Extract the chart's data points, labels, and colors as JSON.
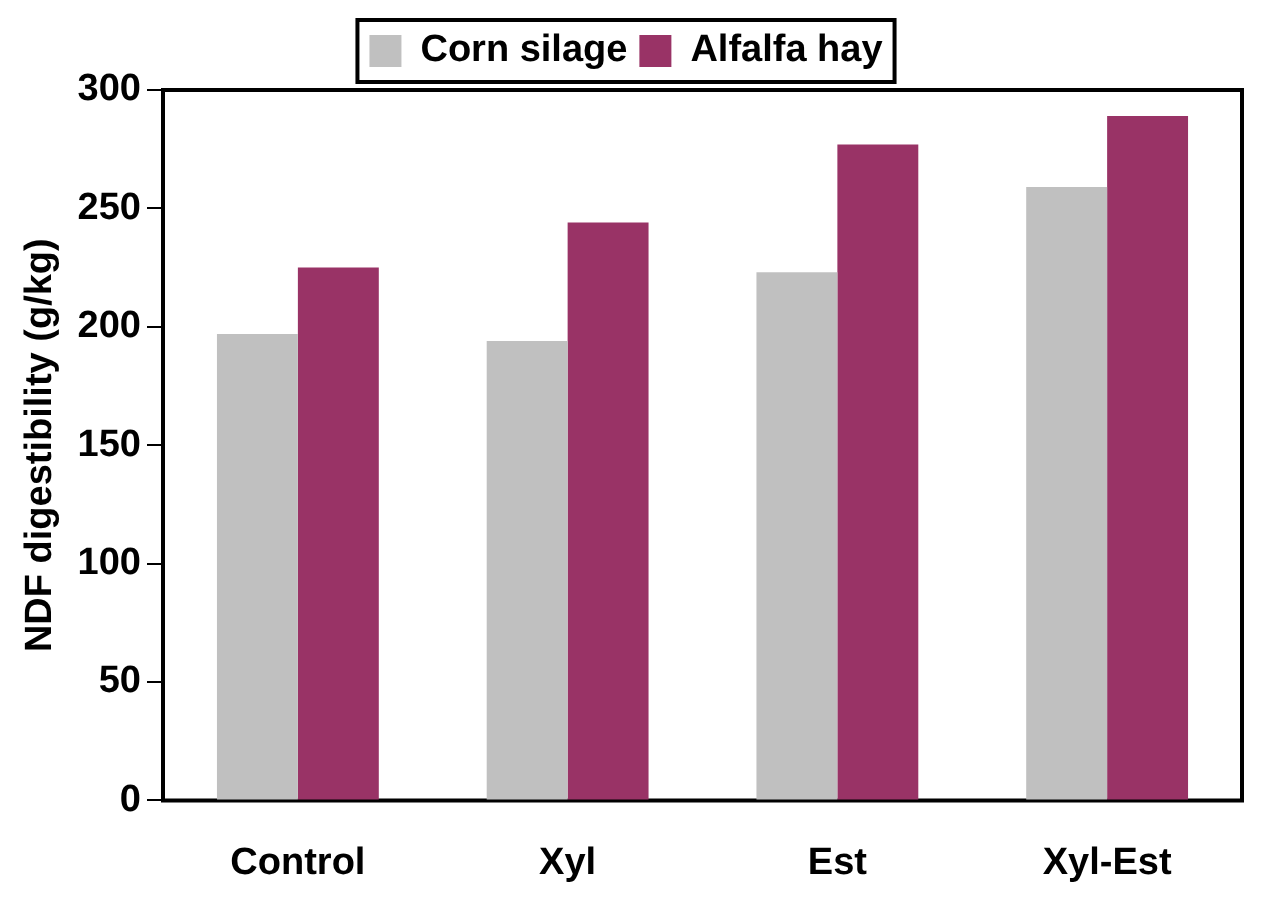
{
  "chart_data": {
    "type": "bar",
    "ylabel": "NDF digestibility (g/kg)",
    "categories": [
      "Control",
      "Xyl",
      "Est",
      "Xyl-Est"
    ],
    "series": [
      {
        "name": "Corn silage",
        "color": "#c0c0c0",
        "values": [
          197,
          194,
          223,
          259
        ]
      },
      {
        "name": "Alfalfa hay",
        "color": "#993366",
        "values": [
          225,
          244,
          277,
          289
        ]
      }
    ],
    "ylim": [
      0,
      300
    ],
    "yticks": [
      0,
      50,
      100,
      150,
      200,
      250,
      300
    ],
    "grid": false,
    "legend": "top"
  }
}
